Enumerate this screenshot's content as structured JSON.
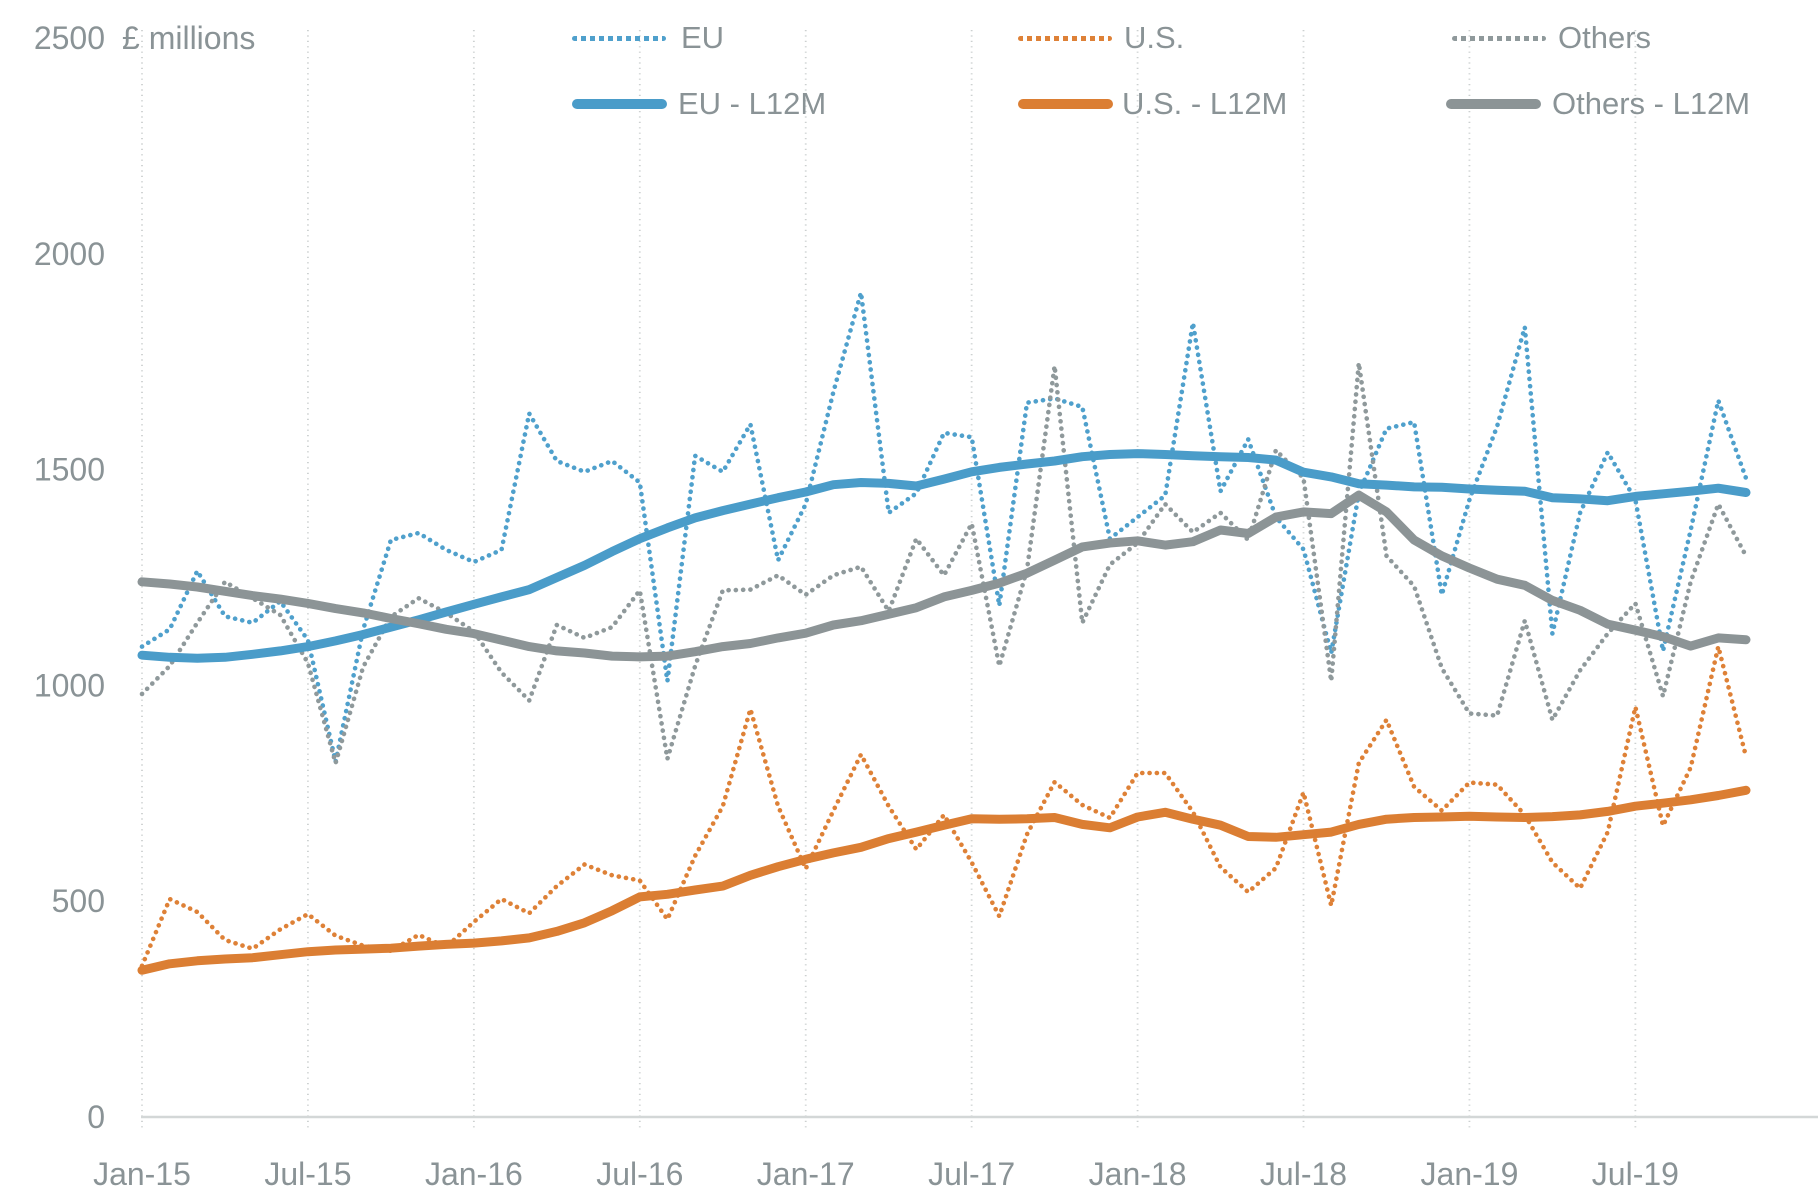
{
  "chart": {
    "unit_label": "£ millions",
    "y_axis": {
      "ticks": [
        0,
        500,
        1000,
        1500,
        2000,
        2500
      ],
      "min": 0,
      "max": 2500
    },
    "x_axis": {
      "tick_labels": [
        "Jan-15",
        "Jul-15",
        "Jan-16",
        "Jul-16",
        "Jan-17",
        "Jul-17",
        "Jan-18",
        "Jul-18",
        "Jan-19",
        "Jul-19"
      ],
      "tick_indices": [
        0,
        6,
        12,
        18,
        24,
        30,
        36,
        42,
        48,
        54
      ]
    },
    "colors": {
      "blue": "#4A9CC9",
      "orange": "#DB7E33",
      "gray": "#8C9496",
      "text": "#8A9396",
      "gridline": "#CCD0D0",
      "axis": "#D3D7D7"
    }
  },
  "chart_data": {
    "type": "line",
    "title": "",
    "xlabel": "",
    "ylabel": "£ millions",
    "ylim": [
      0,
      2500
    ],
    "grid": "vertical-dotted",
    "legend_position": "top",
    "x": [
      "Jan-15",
      "Feb-15",
      "Mar-15",
      "Apr-15",
      "May-15",
      "Jun-15",
      "Jul-15",
      "Aug-15",
      "Sep-15",
      "Oct-15",
      "Nov-15",
      "Dec-15",
      "Jan-16",
      "Feb-16",
      "Mar-16",
      "Apr-16",
      "May-16",
      "Jun-16",
      "Jul-16",
      "Aug-16",
      "Sep-16",
      "Oct-16",
      "Nov-16",
      "Dec-16",
      "Jan-17",
      "Feb-17",
      "Mar-17",
      "Apr-17",
      "May-17",
      "Jun-17",
      "Jul-17",
      "Aug-17",
      "Sep-17",
      "Oct-17",
      "Nov-17",
      "Dec-17",
      "Jan-18",
      "Feb-18",
      "Mar-18",
      "Apr-18",
      "May-18",
      "Jun-18",
      "Jul-18",
      "Aug-18",
      "Sep-18",
      "Oct-18",
      "Nov-18",
      "Dec-18",
      "Jan-19",
      "Feb-19",
      "Mar-19",
      "Apr-19",
      "May-19",
      "Jun-19",
      "Jul-19",
      "Aug-19",
      "Sep-19",
      "Oct-19",
      "Nov-19"
    ],
    "series": [
      {
        "name": "EU",
        "style": "dotted",
        "color": "#4FA0CC",
        "values": [
          1090,
          1130,
          1265,
          1160,
          1145,
          1195,
          1105,
          823,
          1130,
          1337,
          1353,
          1314,
          1286,
          1314,
          1630,
          1520,
          1495,
          1520,
          1470,
          1010,
          1532,
          1495,
          1605,
          1290,
          1420,
          1680,
          1910,
          1400,
          1445,
          1585,
          1575,
          1185,
          1655,
          1665,
          1645,
          1340,
          1390,
          1440,
          1840,
          1450,
          1570,
          1390,
          1315,
          1075,
          1445,
          1595,
          1610,
          1210,
          1430,
          1600,
          1830,
          1120,
          1400,
          1540,
          1430,
          1080,
          1360,
          1660,
          1480
        ]
      },
      {
        "name": "U.S.",
        "style": "dotted",
        "color": "#DE8137",
        "values": [
          350,
          505,
          475,
          410,
          390,
          435,
          470,
          420,
          397,
          385,
          422,
          394,
          452,
          505,
          472,
          535,
          585,
          560,
          548,
          458,
          605,
          720,
          945,
          720,
          575,
          710,
          840,
          720,
          620,
          700,
          590,
          465,
          655,
          776,
          723,
          693,
          797,
          797,
          707,
          579,
          521,
          577,
          752,
          490,
          820,
          920,
          765,
          710,
          775,
          770,
          700,
          590,
          530,
          660,
          950,
          675,
          810,
          1090,
          835
        ]
      },
      {
        "name": "Others",
        "style": "dotted",
        "color": "#8F999B",
        "values": [
          980,
          1045,
          1145,
          1240,
          1202,
          1163,
          1052,
          820,
          1043,
          1159,
          1202,
          1168,
          1125,
          1030,
          965,
          1140,
          1110,
          1135,
          1220,
          830,
          1045,
          1220,
          1222,
          1255,
          1210,
          1255,
          1275,
          1172,
          1340,
          1255,
          1375,
          1045,
          1268,
          1740,
          1145,
          1280,
          1330,
          1420,
          1355,
          1400,
          1337,
          1545,
          1480,
          1010,
          1747,
          1300,
          1230,
          1040,
          935,
          930,
          1150,
          920,
          1035,
          1120,
          1190,
          975,
          1240,
          1420,
          1300
        ]
      },
      {
        "name": "EU - L12M",
        "style": "solid",
        "color": "#4A9CC9",
        "values": [
          1070,
          1065,
          1063,
          1065,
          1072,
          1080,
          1090,
          1103,
          1118,
          1135,
          1152,
          1170,
          1188,
          1205,
          1222,
          1250,
          1278,
          1310,
          1340,
          1365,
          1388,
          1405,
          1420,
          1435,
          1448,
          1465,
          1470,
          1468,
          1462,
          1478,
          1495,
          1505,
          1513,
          1520,
          1530,
          1535,
          1537,
          1535,
          1532,
          1530,
          1528,
          1522,
          1494,
          1483,
          1467,
          1464,
          1460,
          1459,
          1455,
          1452,
          1450,
          1435,
          1432,
          1428,
          1438,
          1444,
          1450,
          1457,
          1447
        ]
      },
      {
        "name": "U.S. - L12M",
        "style": "solid",
        "color": "#DB7E33",
        "values": [
          340,
          355,
          362,
          366,
          369,
          376,
          383,
          387,
          389,
          391,
          396,
          400,
          403,
          408,
          415,
          430,
          450,
          478,
          510,
          516,
          526,
          535,
          560,
          580,
          597,
          612,
          625,
          645,
          660,
          676,
          691,
          690,
          691,
          694,
          678,
          670,
          695,
          706,
          690,
          676,
          650,
          648,
          654,
          660,
          678,
          690,
          694,
          695,
          697,
          695,
          694,
          696,
          700,
          708,
          720,
          727,
          735,
          745,
          757
        ]
      },
      {
        "name": "Others - L12M",
        "style": "solid",
        "color": "#8C9496",
        "values": [
          1240,
          1235,
          1228,
          1218,
          1208,
          1200,
          1190,
          1178,
          1168,
          1155,
          1143,
          1130,
          1120,
          1105,
          1090,
          1080,
          1075,
          1068,
          1066,
          1068,
          1078,
          1090,
          1097,
          1110,
          1121,
          1140,
          1150,
          1165,
          1180,
          1205,
          1220,
          1237,
          1260,
          1290,
          1321,
          1330,
          1335,
          1325,
          1333,
          1360,
          1352,
          1390,
          1402,
          1398,
          1441,
          1402,
          1337,
          1300,
          1272,
          1246,
          1232,
          1197,
          1174,
          1142,
          1128,
          1113,
          1091,
          1110,
          1106
        ]
      }
    ]
  }
}
